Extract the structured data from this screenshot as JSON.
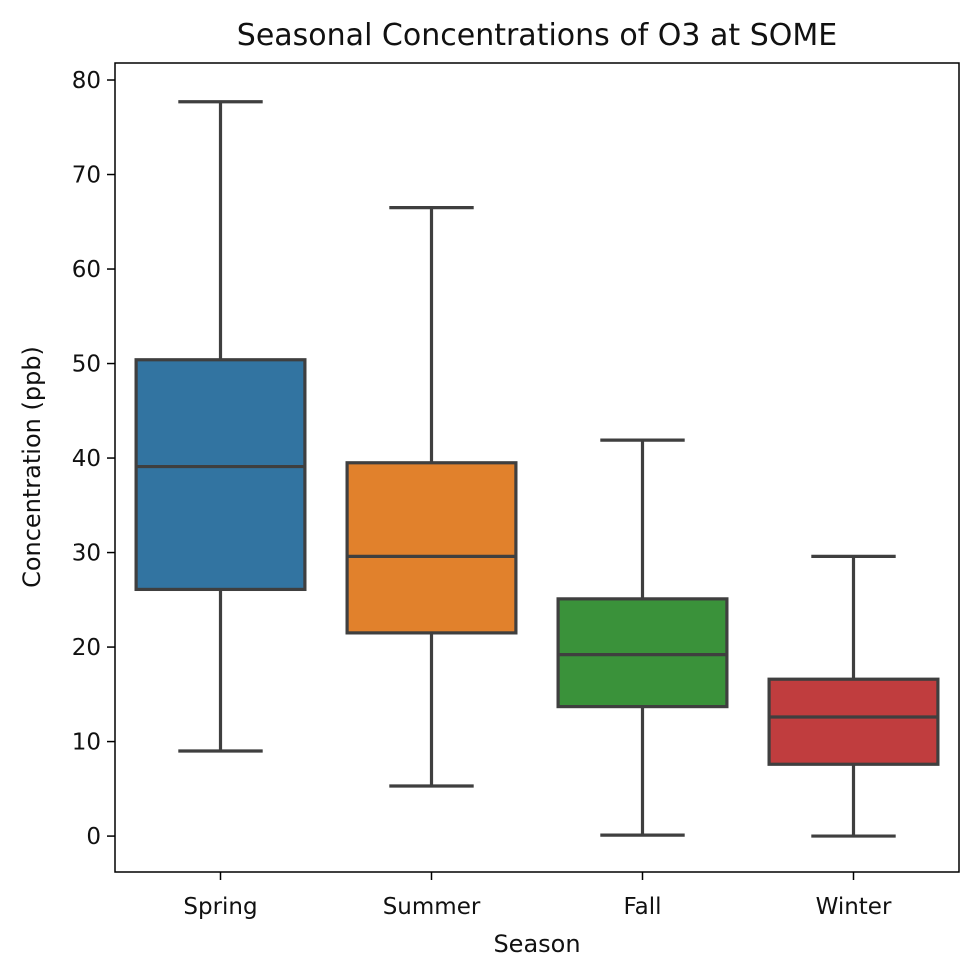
{
  "chart_data": {
    "type": "box",
    "title": "Seasonal Concentrations of O3 at SOME",
    "xlabel": "Season",
    "ylabel": "Concentration (ppb)",
    "ylim": [
      -3.8,
      81.8
    ],
    "yticks": [
      0,
      10,
      20,
      30,
      40,
      50,
      60,
      70,
      80
    ],
    "categories": [
      "Spring",
      "Summer",
      "Fall",
      "Winter"
    ],
    "colors": [
      "#3274a1",
      "#e1812c",
      "#3a923a",
      "#c03d3e"
    ],
    "boxes": [
      {
        "category": "Spring",
        "whisker_low": 9.0,
        "q1": 26.1,
        "median": 39.1,
        "q3": 50.4,
        "whisker_high": 77.7
      },
      {
        "category": "Summer",
        "whisker_low": 5.3,
        "q1": 21.5,
        "median": 29.6,
        "q3": 39.5,
        "whisker_high": 66.5
      },
      {
        "category": "Fall",
        "whisker_low": 0.1,
        "q1": 13.7,
        "median": 19.2,
        "q3": 25.1,
        "whisker_high": 41.9
      },
      {
        "category": "Winter",
        "whisker_low": 0.0,
        "q1": 7.6,
        "median": 12.6,
        "q3": 16.6,
        "whisker_high": 29.6
      }
    ],
    "grid": false,
    "legend": "none"
  }
}
